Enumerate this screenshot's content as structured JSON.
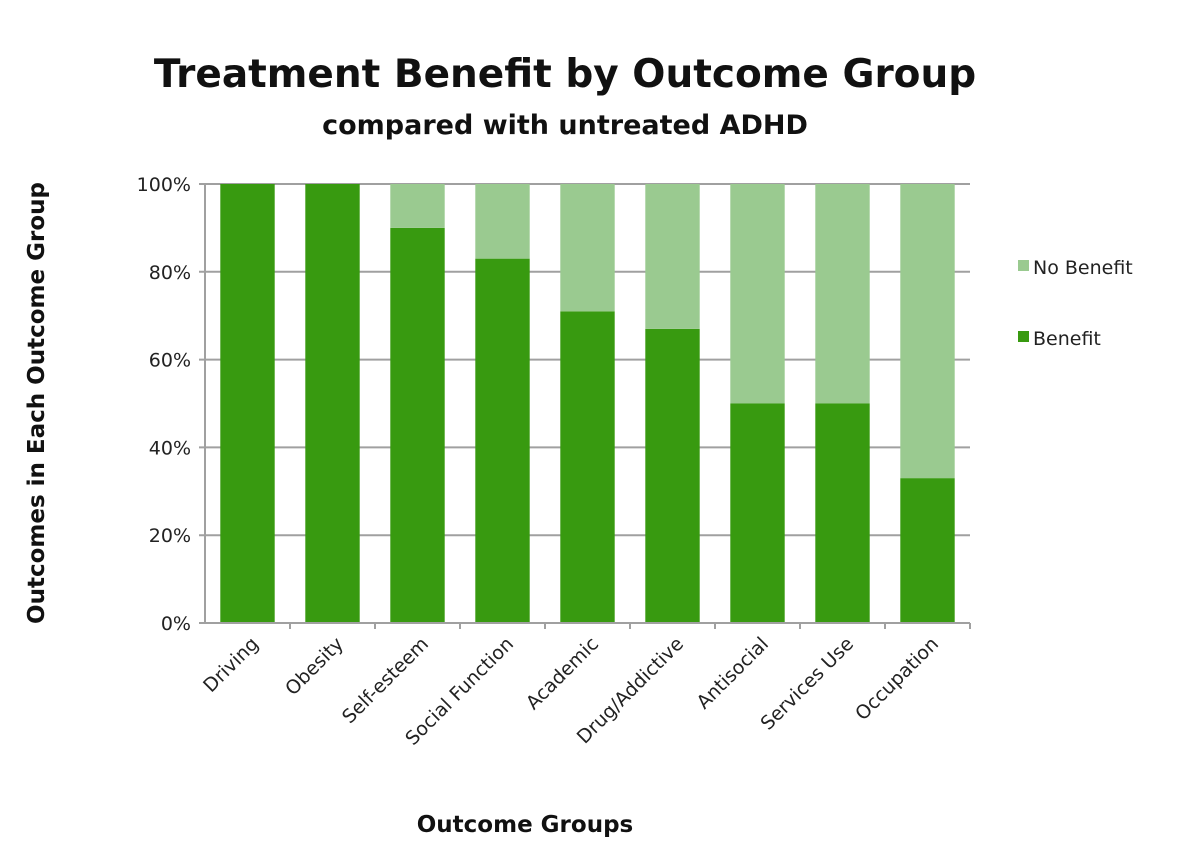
{
  "chart_data": {
    "type": "bar",
    "stacked": true,
    "percent_stacked": true,
    "title": "Treatment Benefit by Outcome Group",
    "subtitle": "compared with untreated ADHD",
    "xlabel": "Outcome Groups",
    "ylabel": "Outcomes in Each Outcome Group",
    "ylim": [
      0,
      100
    ],
    "yticks": [
      "0%",
      "20%",
      "40%",
      "60%",
      "80%",
      "100%"
    ],
    "grid": true,
    "legend_position": "right",
    "categories": [
      "Driving",
      "Obesity",
      "Self-esteem",
      "Social Function",
      "Academic",
      "Drug/Addictive",
      "Antisocial",
      "Services Use",
      "Occupation"
    ],
    "series": [
      {
        "name": "Benefit",
        "color": "#389a10",
        "values": [
          100,
          100,
          90,
          83,
          71,
          67,
          50,
          50,
          33
        ]
      },
      {
        "name": "No Benefit",
        "color": "#9aca90",
        "values": [
          0,
          0,
          10,
          17,
          29,
          33,
          50,
          50,
          67
        ]
      }
    ],
    "legend": [
      "No Benefit",
      "Benefit"
    ]
  }
}
